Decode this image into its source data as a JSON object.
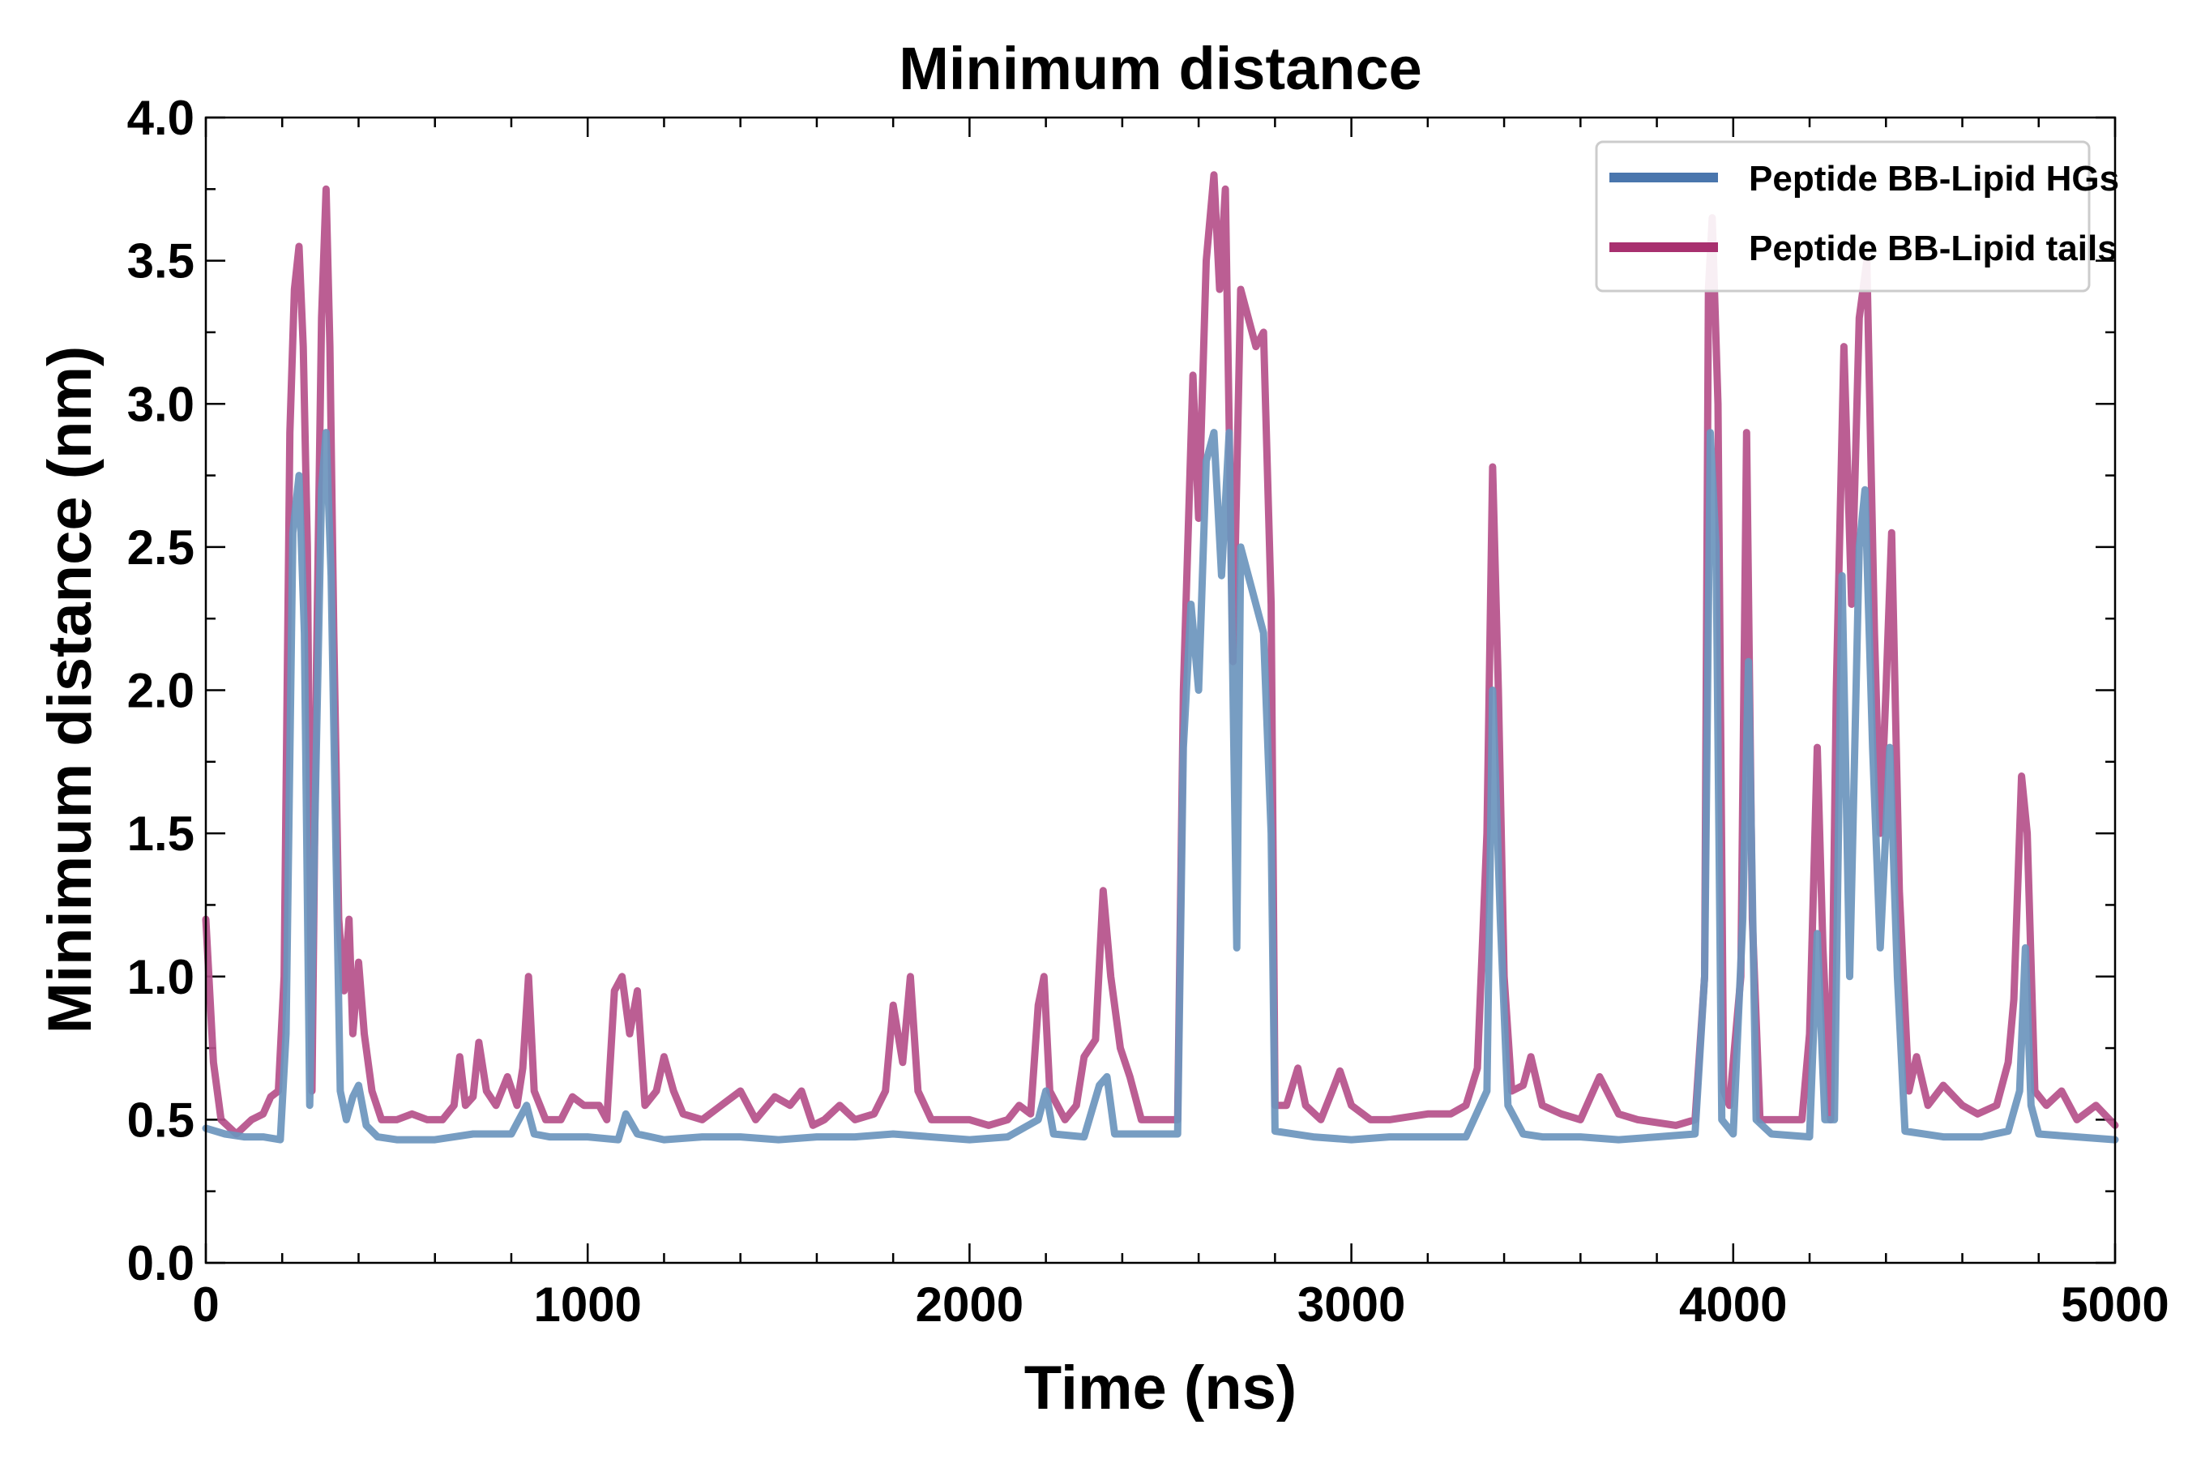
{
  "chart_data": {
    "type": "line",
    "title": "Minimum distance",
    "xlabel": "Time (ns)",
    "ylabel": "Minimum distance (nm)",
    "xlim": [
      0,
      5000
    ],
    "ylim": [
      0.0,
      4.0
    ],
    "xticks": [
      0,
      1000,
      2000,
      3000,
      4000,
      5000
    ],
    "xtick_labels": [
      "0",
      "1000",
      "2000",
      "3000",
      "4000",
      "5000"
    ],
    "yticks": [
      0.0,
      0.5,
      1.0,
      1.5,
      2.0,
      2.5,
      3.0,
      3.5,
      4.0
    ],
    "ytick_labels": [
      "0.0",
      "0.5",
      "1.0",
      "1.5",
      "2.0",
      "2.5",
      "3.0",
      "3.5",
      "4.0"
    ],
    "grid": false,
    "legend_position": "top-right",
    "series": [
      {
        "name": "Peptide BB-Lipid tails",
        "color": "#b5508a",
        "legend_color": "#a8306f",
        "points": [
          [
            0,
            1.2
          ],
          [
            20,
            0.7
          ],
          [
            40,
            0.5
          ],
          [
            80,
            0.45
          ],
          [
            120,
            0.5
          ],
          [
            150,
            0.52
          ],
          [
            170,
            0.58
          ],
          [
            190,
            0.6
          ],
          [
            205,
            1.0
          ],
          [
            220,
            2.9
          ],
          [
            232,
            3.4
          ],
          [
            244,
            3.55
          ],
          [
            255,
            3.2
          ],
          [
            266,
            2.5
          ],
          [
            278,
            0.6
          ],
          [
            290,
            2.1
          ],
          [
            303,
            3.3
          ],
          [
            315,
            3.75
          ],
          [
            325,
            3.2
          ],
          [
            335,
            2.2
          ],
          [
            348,
            1.2
          ],
          [
            362,
            0.95
          ],
          [
            375,
            1.2
          ],
          [
            385,
            0.8
          ],
          [
            400,
            1.05
          ],
          [
            415,
            0.8
          ],
          [
            435,
            0.6
          ],
          [
            460,
            0.5
          ],
          [
            500,
            0.5
          ],
          [
            540,
            0.52
          ],
          [
            580,
            0.5
          ],
          [
            620,
            0.5
          ],
          [
            650,
            0.55
          ],
          [
            665,
            0.72
          ],
          [
            680,
            0.55
          ],
          [
            700,
            0.58
          ],
          [
            715,
            0.77
          ],
          [
            735,
            0.6
          ],
          [
            760,
            0.55
          ],
          [
            790,
            0.65
          ],
          [
            815,
            0.55
          ],
          [
            830,
            0.68
          ],
          [
            845,
            1.0
          ],
          [
            860,
            0.6
          ],
          [
            890,
            0.5
          ],
          [
            930,
            0.5
          ],
          [
            960,
            0.58
          ],
          [
            990,
            0.55
          ],
          [
            1030,
            0.55
          ],
          [
            1050,
            0.5
          ],
          [
            1070,
            0.95
          ],
          [
            1090,
            1.0
          ],
          [
            1110,
            0.8
          ],
          [
            1130,
            0.95
          ],
          [
            1150,
            0.55
          ],
          [
            1180,
            0.6
          ],
          [
            1200,
            0.72
          ],
          [
            1225,
            0.6
          ],
          [
            1250,
            0.52
          ],
          [
            1300,
            0.5
          ],
          [
            1350,
            0.55
          ],
          [
            1400,
            0.6
          ],
          [
            1440,
            0.5
          ],
          [
            1490,
            0.58
          ],
          [
            1530,
            0.55
          ],
          [
            1560,
            0.6
          ],
          [
            1590,
            0.48
          ],
          [
            1620,
            0.5
          ],
          [
            1660,
            0.55
          ],
          [
            1700,
            0.5
          ],
          [
            1750,
            0.52
          ],
          [
            1780,
            0.6
          ],
          [
            1800,
            0.9
          ],
          [
            1825,
            0.7
          ],
          [
            1845,
            1.0
          ],
          [
            1865,
            0.6
          ],
          [
            1900,
            0.5
          ],
          [
            1950,
            0.5
          ],
          [
            2000,
            0.5
          ],
          [
            2050,
            0.48
          ],
          [
            2100,
            0.5
          ],
          [
            2130,
            0.55
          ],
          [
            2160,
            0.52
          ],
          [
            2180,
            0.9
          ],
          [
            2195,
            1.0
          ],
          [
            2210,
            0.6
          ],
          [
            2250,
            0.5
          ],
          [
            2280,
            0.55
          ],
          [
            2300,
            0.72
          ],
          [
            2330,
            0.78
          ],
          [
            2350,
            1.3
          ],
          [
            2370,
            1.0
          ],
          [
            2395,
            0.75
          ],
          [
            2420,
            0.65
          ],
          [
            2450,
            0.5
          ],
          [
            2480,
            0.5
          ],
          [
            2520,
            0.5
          ],
          [
            2545,
            0.5
          ],
          [
            2560,
            2.0
          ],
          [
            2585,
            3.1
          ],
          [
            2600,
            2.6
          ],
          [
            2620,
            3.5
          ],
          [
            2640,
            3.8
          ],
          [
            2655,
            3.4
          ],
          [
            2670,
            3.75
          ],
          [
            2690,
            2.1
          ],
          [
            2710,
            3.4
          ],
          [
            2730,
            3.3
          ],
          [
            2750,
            3.2
          ],
          [
            2770,
            3.25
          ],
          [
            2790,
            2.3
          ],
          [
            2800,
            0.55
          ],
          [
            2830,
            0.55
          ],
          [
            2860,
            0.68
          ],
          [
            2880,
            0.55
          ],
          [
            2920,
            0.5
          ],
          [
            2950,
            0.6
          ],
          [
            2970,
            0.67
          ],
          [
            3000,
            0.55
          ],
          [
            3050,
            0.5
          ],
          [
            3100,
            0.5
          ],
          [
            3200,
            0.52
          ],
          [
            3260,
            0.52
          ],
          [
            3300,
            0.55
          ],
          [
            3330,
            0.68
          ],
          [
            3355,
            1.5
          ],
          [
            3370,
            2.78
          ],
          [
            3385,
            2.0
          ],
          [
            3400,
            1.0
          ],
          [
            3420,
            0.6
          ],
          [
            3450,
            0.62
          ],
          [
            3470,
            0.72
          ],
          [
            3500,
            0.55
          ],
          [
            3550,
            0.52
          ],
          [
            3600,
            0.5
          ],
          [
            3650,
            0.65
          ],
          [
            3700,
            0.52
          ],
          [
            3750,
            0.5
          ],
          [
            3850,
            0.48
          ],
          [
            3900,
            0.5
          ],
          [
            3925,
            1.0
          ],
          [
            3935,
            3.4
          ],
          [
            3945,
            3.65
          ],
          [
            3960,
            3.0
          ],
          [
            3975,
            0.6
          ],
          [
            3990,
            0.55
          ],
          [
            4020,
            1.0
          ],
          [
            4035,
            2.9
          ],
          [
            4050,
            1.2
          ],
          [
            4070,
            0.5
          ],
          [
            4130,
            0.5
          ],
          [
            4180,
            0.5
          ],
          [
            4200,
            0.8
          ],
          [
            4220,
            1.8
          ],
          [
            4235,
            1.1
          ],
          [
            4255,
            0.5
          ],
          [
            4270,
            2.0
          ],
          [
            4290,
            3.2
          ],
          [
            4310,
            2.3
          ],
          [
            4330,
            3.3
          ],
          [
            4350,
            3.5
          ],
          [
            4370,
            2.2
          ],
          [
            4385,
            1.5
          ],
          [
            4400,
            2.0
          ],
          [
            4415,
            2.55
          ],
          [
            4435,
            1.3
          ],
          [
            4460,
            0.6
          ],
          [
            4480,
            0.72
          ],
          [
            4510,
            0.55
          ],
          [
            4550,
            0.62
          ],
          [
            4600,
            0.55
          ],
          [
            4640,
            0.52
          ],
          [
            4690,
            0.55
          ],
          [
            4720,
            0.7
          ],
          [
            4735,
            0.92
          ],
          [
            4755,
            1.7
          ],
          [
            4770,
            1.5
          ],
          [
            4790,
            0.6
          ],
          [
            4820,
            0.55
          ],
          [
            4860,
            0.6
          ],
          [
            4900,
            0.5
          ],
          [
            4950,
            0.55
          ],
          [
            5000,
            0.48
          ]
        ]
      },
      {
        "name": "Peptide BB-Lipid HGs",
        "color": "#6b95bd",
        "legend_color": "#4a76ad",
        "points": [
          [
            0,
            0.47
          ],
          [
            50,
            0.45
          ],
          [
            100,
            0.44
          ],
          [
            150,
            0.44
          ],
          [
            195,
            0.43
          ],
          [
            210,
            0.8
          ],
          [
            228,
            2.55
          ],
          [
            244,
            2.75
          ],
          [
            258,
            2.2
          ],
          [
            272,
            0.55
          ],
          [
            285,
            1.5
          ],
          [
            303,
            2.7
          ],
          [
            315,
            2.9
          ],
          [
            328,
            2.4
          ],
          [
            340,
            1.5
          ],
          [
            352,
            0.6
          ],
          [
            368,
            0.5
          ],
          [
            385,
            0.58
          ],
          [
            400,
            0.62
          ],
          [
            420,
            0.48
          ],
          [
            450,
            0.44
          ],
          [
            500,
            0.43
          ],
          [
            600,
            0.43
          ],
          [
            700,
            0.45
          ],
          [
            800,
            0.45
          ],
          [
            840,
            0.55
          ],
          [
            860,
            0.45
          ],
          [
            900,
            0.44
          ],
          [
            1000,
            0.44
          ],
          [
            1080,
            0.43
          ],
          [
            1100,
            0.52
          ],
          [
            1130,
            0.45
          ],
          [
            1200,
            0.43
          ],
          [
            1300,
            0.44
          ],
          [
            1400,
            0.44
          ],
          [
            1500,
            0.43
          ],
          [
            1600,
            0.44
          ],
          [
            1700,
            0.44
          ],
          [
            1800,
            0.45
          ],
          [
            1900,
            0.44
          ],
          [
            2000,
            0.43
          ],
          [
            2100,
            0.44
          ],
          [
            2180,
            0.5
          ],
          [
            2200,
            0.6
          ],
          [
            2220,
            0.45
          ],
          [
            2300,
            0.44
          ],
          [
            2340,
            0.62
          ],
          [
            2360,
            0.65
          ],
          [
            2380,
            0.45
          ],
          [
            2450,
            0.45
          ],
          [
            2545,
            0.45
          ],
          [
            2560,
            1.8
          ],
          [
            2580,
            2.3
          ],
          [
            2600,
            2.0
          ],
          [
            2620,
            2.8
          ],
          [
            2640,
            2.9
          ],
          [
            2660,
            2.4
          ],
          [
            2680,
            2.9
          ],
          [
            2700,
            1.1
          ],
          [
            2710,
            2.5
          ],
          [
            2730,
            2.4
          ],
          [
            2750,
            2.3
          ],
          [
            2770,
            2.2
          ],
          [
            2790,
            1.5
          ],
          [
            2800,
            0.46
          ],
          [
            2900,
            0.44
          ],
          [
            3000,
            0.43
          ],
          [
            3100,
            0.44
          ],
          [
            3200,
            0.44
          ],
          [
            3300,
            0.44
          ],
          [
            3355,
            0.6
          ],
          [
            3370,
            2.0
          ],
          [
            3390,
            1.2
          ],
          [
            3410,
            0.55
          ],
          [
            3450,
            0.45
          ],
          [
            3500,
            0.44
          ],
          [
            3600,
            0.44
          ],
          [
            3700,
            0.43
          ],
          [
            3800,
            0.44
          ],
          [
            3900,
            0.45
          ],
          [
            3925,
            1.0
          ],
          [
            3940,
            2.9
          ],
          [
            3955,
            2.5
          ],
          [
            3970,
            0.5
          ],
          [
            4000,
            0.45
          ],
          [
            4025,
            1.2
          ],
          [
            4040,
            2.1
          ],
          [
            4060,
            0.5
          ],
          [
            4100,
            0.45
          ],
          [
            4200,
            0.44
          ],
          [
            4220,
            1.15
          ],
          [
            4240,
            0.5
          ],
          [
            4265,
            0.5
          ],
          [
            4285,
            2.4
          ],
          [
            4305,
            1.0
          ],
          [
            4330,
            2.5
          ],
          [
            4345,
            2.7
          ],
          [
            4365,
            1.8
          ],
          [
            4385,
            1.1
          ],
          [
            4410,
            1.8
          ],
          [
            4430,
            1.0
          ],
          [
            4450,
            0.46
          ],
          [
            4550,
            0.44
          ],
          [
            4650,
            0.44
          ],
          [
            4720,
            0.46
          ],
          [
            4750,
            0.6
          ],
          [
            4765,
            1.1
          ],
          [
            4780,
            0.55
          ],
          [
            4800,
            0.45
          ],
          [
            4900,
            0.44
          ],
          [
            5000,
            0.43
          ]
        ]
      }
    ]
  },
  "legend": {
    "items": [
      {
        "label": "Peptide BB-Lipid HGs",
        "color": "#4a76ad"
      },
      {
        "label": "Peptide BB-Lipid tails",
        "color": "#a8306f"
      }
    ]
  }
}
